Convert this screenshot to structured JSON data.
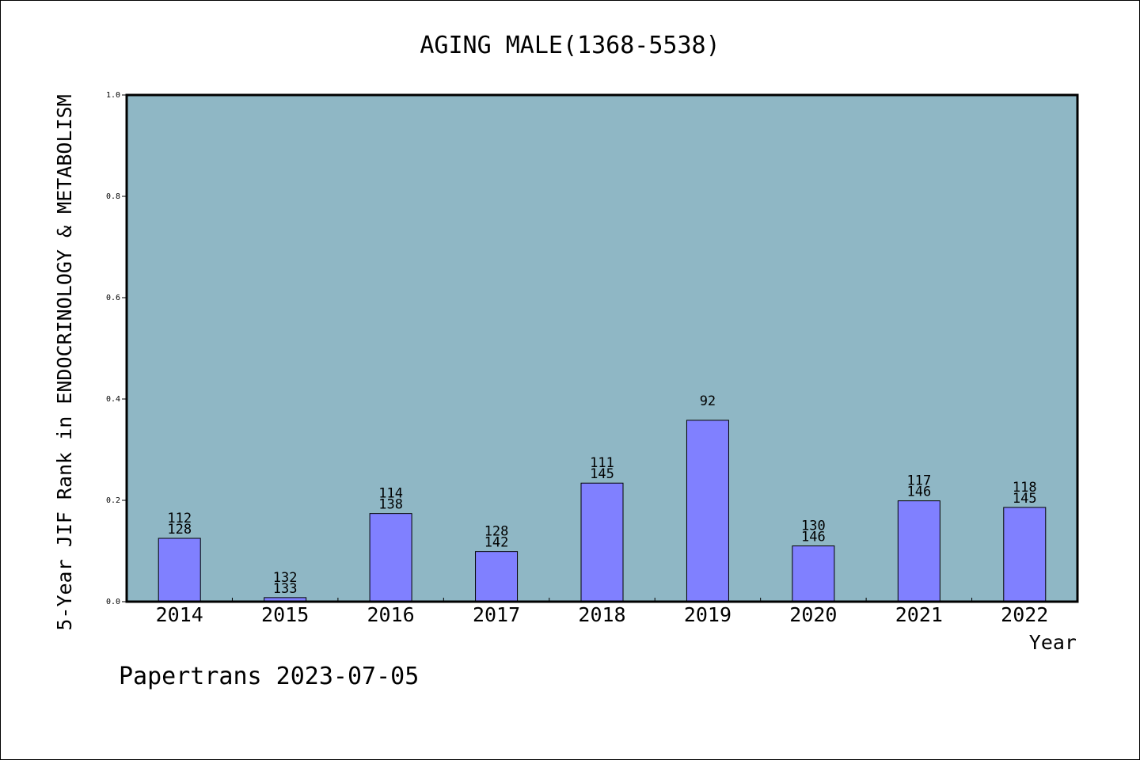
{
  "chart_data": {
    "type": "bar",
    "title": "AGING MALE(1368-5538)",
    "ylabel": "5-Year JIF Rank in ENDOCRINOLOGY & METABOLISM",
    "xlabel": "Year",
    "footer": "Papertrans 2023-07-05",
    "ylim": [
      0,
      1.0
    ],
    "yticks": [
      "0.0",
      "0.2",
      "0.4",
      "0.6",
      "0.8",
      "1.0"
    ],
    "categories": [
      "2014",
      "2015",
      "2016",
      "2017",
      "2018",
      "2019",
      "2020",
      "2021",
      "2022"
    ],
    "values": [
      0.125,
      0.008,
      0.174,
      0.099,
      0.234,
      0.358,
      0.11,
      0.199,
      0.186
    ],
    "rank_labels": [
      [
        "112",
        "128"
      ],
      [
        "132",
        "133"
      ],
      [
        "114",
        "138"
      ],
      [
        "128",
        "142"
      ],
      [
        "111",
        "145"
      ],
      [
        "92"
      ],
      [
        "130",
        "146"
      ],
      [
        "117",
        "146"
      ],
      [
        "118",
        "145"
      ]
    ],
    "grid": false,
    "colors": {
      "plot_bg": "#8fb7c5",
      "bar": "#8080ff",
      "bar_edge": "#000000"
    }
  }
}
